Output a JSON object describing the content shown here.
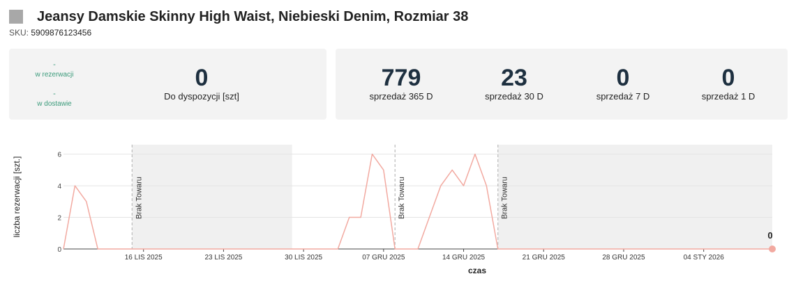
{
  "product": {
    "title": "Jeansy Damskie Skinny High Waist, Niebieski Denim, Rozmiar 38",
    "sku_label": "SKU:",
    "sku_value": "5909876123456"
  },
  "stock": {
    "reserved": {
      "value": "-",
      "label": "w rezerwacji"
    },
    "in_delivery": {
      "value": "-",
      "label": "w dostawie"
    },
    "available": {
      "value": "0",
      "label": "Do dyspozycji [szt]"
    }
  },
  "sales": [
    {
      "value": "779",
      "label": "sprzedaż 365 D"
    },
    {
      "value": "23",
      "label": "sprzedaż 30 D"
    },
    {
      "value": "0",
      "label": "sprzedaż 7 D"
    },
    {
      "value": "0",
      "label": "sprzedaż 1 D"
    }
  ],
  "colors": {
    "line": "#f2a9a0",
    "marker": "#f2a9a0",
    "shade": "#f0f0f0",
    "dashed": "#bbbbbb",
    "stat_green": "#3a9a7a",
    "stat_dark": "#1e3040"
  },
  "chart_data": {
    "type": "line",
    "xlabel": "czas",
    "ylabel": "liczba rezerwacji [szt.]",
    "x_start": "2025-11-09",
    "x_end": "2026-01-10",
    "ylim": [
      0,
      6.6
    ],
    "yticks": [
      0,
      2,
      4,
      6
    ],
    "xticks": [
      {
        "date": "2025-11-16",
        "label": "16 LIS 2025"
      },
      {
        "date": "2025-11-23",
        "label": "23 LIS 2025"
      },
      {
        "date": "2025-11-30",
        "label": "30 LIS 2025"
      },
      {
        "date": "2025-12-07",
        "label": "07 GRU 2025"
      },
      {
        "date": "2025-12-14",
        "label": "14 GRU 2025"
      },
      {
        "date": "2025-12-21",
        "label": "21 GRU 2025"
      },
      {
        "date": "2025-12-28",
        "label": "28 GRU 2025"
      },
      {
        "date": "2026-01-04",
        "label": "04 STY 2026"
      }
    ],
    "series": [
      {
        "points": [
          [
            "2025-11-09",
            0
          ],
          [
            "2025-11-10",
            4
          ],
          [
            "2025-11-11",
            3
          ],
          [
            "2025-11-12",
            0
          ],
          [
            "2025-12-02",
            0
          ],
          [
            "2025-12-03",
            0
          ],
          [
            "2025-12-04",
            2
          ],
          [
            "2025-12-05",
            2
          ],
          [
            "2025-12-06",
            6
          ],
          [
            "2025-12-07",
            5
          ],
          [
            "2025-12-08",
            0
          ],
          [
            "2025-12-09",
            0
          ],
          [
            "2025-12-10",
            0
          ],
          [
            "2025-12-11",
            2
          ],
          [
            "2025-12-12",
            4
          ],
          [
            "2025-12-13",
            5
          ],
          [
            "2025-12-14",
            4
          ],
          [
            "2025-12-15",
            6
          ],
          [
            "2025-12-16",
            4
          ],
          [
            "2025-12-17",
            0
          ],
          [
            "2026-01-10",
            0
          ]
        ]
      }
    ],
    "stockout_periods": [
      {
        "start": "2025-11-15",
        "end": "2025-11-29",
        "label": "Brak Towaru"
      },
      {
        "start": "2025-12-17",
        "end": "2026-01-10",
        "label": "Brak Towaru"
      }
    ],
    "annotation_lines": [
      {
        "date": "2025-11-15",
        "label": "Brak Towaru"
      },
      {
        "date": "2025-12-08",
        "label": "Brak Towaru"
      },
      {
        "date": "2025-12-17",
        "label": "Brak Towaru"
      }
    ],
    "last_point": {
      "date": "2026-01-10",
      "value": 0,
      "label": "0"
    },
    "grid": true
  }
}
